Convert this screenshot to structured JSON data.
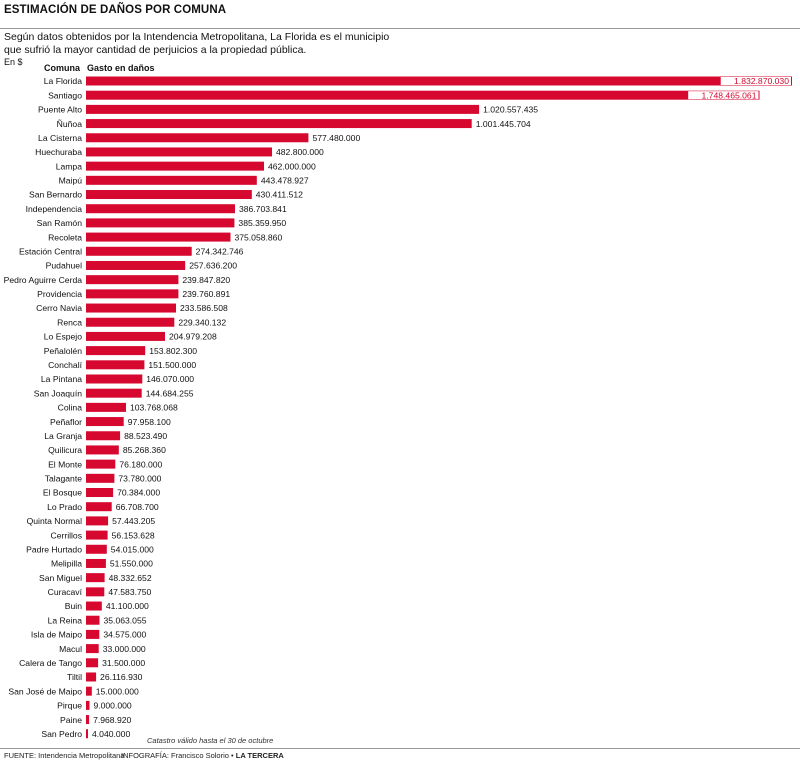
{
  "header": {
    "title": "ESTIMACIÓN DE DAÑOS POR COMUNA",
    "subtitle": "Según datos obtenidos por la Intendencia Metropolitana, La Florida es el municipio que sufrió la mayor cantidad de perjuicios a la propiedad pública.",
    "unit": "En $",
    "col_comuna": "Comuna",
    "col_gasto": "Gasto en daños"
  },
  "footer": {
    "note": "Catastro válido hasta el 30 de octubre",
    "source": "FUENTE: Intendencia Metropolitana",
    "credit_prefix": "INFOGRAFÍA: Francisco Solorio • ",
    "credit_brand": "LA TERCERA"
  },
  "colors": {
    "bar": "#d6082f",
    "label_inside": "#ffffff",
    "text": "#111111"
  },
  "chart_data": {
    "type": "bar",
    "orientation": "horizontal",
    "title": "ESTIMACIÓN DE DAÑOS POR COMUNA",
    "xlabel": "Gasto en daños",
    "ylabel": "Comuna",
    "categories": [
      "La Florida",
      "Santiago",
      "Puente Alto",
      "Ñuñoa",
      "La Cisterna",
      "Huechuraba",
      "Lampa",
      "Maipú",
      "San Bernardo",
      "Independencia",
      "San Ramón",
      "Recoleta",
      "Estación Central",
      "Pudahuel",
      "Pedro Aguirre Cerda",
      "Providencia",
      "Cerro Navia",
      "Renca",
      "Lo Espejo",
      "Peñalolén",
      "Conchalí",
      "La Pintana",
      "San Joaquín",
      "Colina",
      "Peñaflor",
      "La Granja",
      "Quilicura",
      "El Monte",
      "Talagante",
      "El Bosque",
      "Lo Prado",
      "Quinta Normal",
      "Cerrillos",
      "Padre Hurtado",
      "Melipilla",
      "San Miguel",
      "Curacaví",
      "Buin",
      "La Reina",
      "Isla de Maipo",
      "Macul",
      "Calera de Tango",
      "Tiltil",
      "San José de Maipo",
      "Pirque",
      "Paine",
      "San Pedro"
    ],
    "values": [
      1832870030,
      1748465061,
      1020557435,
      1001445704,
      577480000,
      482800000,
      462000000,
      443478927,
      430411512,
      386703841,
      385359950,
      375058860,
      274342746,
      257636200,
      239847820,
      239760891,
      233586508,
      229340132,
      204979208,
      153802300,
      151500000,
      146070000,
      144684255,
      103768068,
      97958100,
      88523490,
      85268360,
      76180000,
      73780000,
      70384000,
      66708700,
      57443205,
      56153628,
      54015000,
      51550000,
      48332652,
      47583750,
      41100000,
      35063055,
      34575000,
      33000000,
      31500000,
      26116930,
      15000000,
      9000000,
      7968920,
      4040000
    ],
    "value_labels": [
      "1.832.870.030",
      "1.748.465.061",
      "1.020.557.435",
      "1.001.445.704",
      "577.480.000",
      "482.800.000",
      "462.000.000",
      "443.478.927",
      "430.411.512",
      "386.703.841",
      "385.359.950",
      "375.058.860",
      "274.342.746",
      "257.636.200",
      "239.847.820",
      "239.760.891",
      "233.586.508",
      "229.340.132",
      "204.979.208",
      "153.802.300",
      "151.500.000",
      "146.070.000",
      "144.684.255",
      "103.768.068",
      "97.958.100",
      "88.523.490",
      "85.268.360",
      "76.180.000",
      "73.780.000",
      "70.384.000",
      "66.708.700",
      "57.443.205",
      "56.153.628",
      "54.015.000",
      "51.550.000",
      "48.332.652",
      "47.583.750",
      "41.100.000",
      "35.063.055",
      "34.575.000",
      "33.000.000",
      "31.500.000",
      "26.116.930",
      "15.000.000",
      "9.000.000",
      "7.968.920",
      "4.040.000"
    ],
    "xlim": [
      0,
      1832870030
    ],
    "grid": false,
    "legend": "none"
  }
}
